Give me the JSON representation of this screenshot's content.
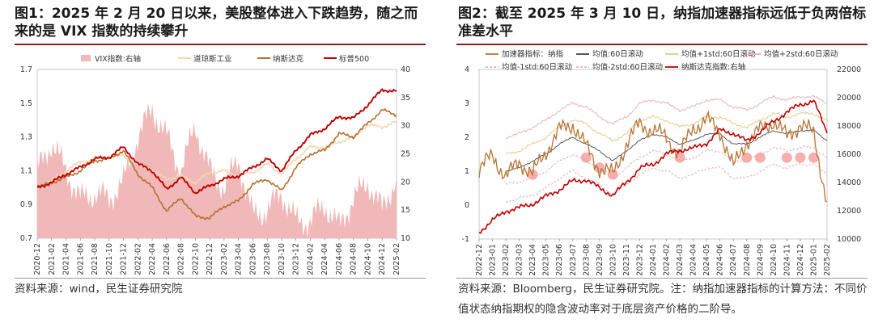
{
  "titles": {
    "left": "图1：2025 年 2 月 20 日以来，美股整体进入下跌趋势，随之而来的是 VIX 指数的持续攀升",
    "right": "图2：截至 2025 年 3 月 10 日，纳指加速器指标远低于负两倍标准差水平"
  },
  "sources": {
    "left": "资料来源：wind，民生证券研究院",
    "right": "资料来源：Bloomberg，民生证券研究院。注：纳指加速器指标的计算方法：不同价值状态纳指期权的隐含波动率对于底层资产价格的二阶导。"
  },
  "colors": {
    "vix": "#f0b8b8",
    "dow": "#f3d7b0",
    "nasdaq": "#b5702e",
    "sp500": "#c00000",
    "accel": "#b87333",
    "mean": "#444444",
    "plus1": "#e8c98a",
    "plus2": "#e8b0b8",
    "minus": "#e8b0b8",
    "highlight": "#f4a0a0"
  },
  "chart_data": [
    {
      "type": "line",
      "title": "图1：2025 年 2 月 20 日以来，美股整体进入下跌趋势，随之而来的是 VIX 指数的持续攀升",
      "legend": [
        "VIX指数:右轴",
        "道琼斯工业",
        "纳斯达克",
        "标普500"
      ],
      "x_ticks": [
        "2020-12",
        "2021-02",
        "2021-04",
        "2021-06",
        "2021-08",
        "2021-10",
        "2021-12",
        "2022-02",
        "2022-04",
        "2022-06",
        "2022-08",
        "2022-10",
        "2022-12",
        "2023-02",
        "2023-04",
        "2023-06",
        "2023-08",
        "2023-10",
        "2023-12",
        "2024-02",
        "2024-04",
        "2024-06",
        "2024-08",
        "2024-10",
        "2024-12",
        "2025-02"
      ],
      "y_left_ticks": [
        "0.7",
        "0.9",
        "1.1",
        "1.3",
        "1.5",
        "1.7"
      ],
      "y_left_range": [
        0.7,
        1.7
      ],
      "y_right_ticks": [
        "10",
        "15",
        "20",
        "25",
        "30",
        "35",
        "40"
      ],
      "y_right_range": [
        10,
        40
      ],
      "series": [
        {
          "name": "道琼斯工业",
          "axis": "left",
          "values": [
            1.0,
            1.04,
            1.1,
            1.15,
            1.17,
            1.18,
            1.19,
            1.13,
            1.1,
            1.05,
            1.07,
            1.03,
            1.09,
            1.1,
            1.07,
            1.09,
            1.14,
            1.08,
            1.17,
            1.24,
            1.24,
            1.27,
            1.3,
            1.37,
            1.36,
            1.39
          ]
        },
        {
          "name": "纳斯达克",
          "axis": "left",
          "values": [
            1.0,
            1.03,
            1.06,
            1.1,
            1.16,
            1.17,
            1.22,
            1.08,
            1.0,
            0.86,
            0.94,
            0.83,
            0.82,
            0.89,
            0.92,
            1.02,
            1.05,
            0.98,
            1.12,
            1.2,
            1.22,
            1.32,
            1.3,
            1.38,
            1.46,
            1.43
          ]
        },
        {
          "name": "标普500",
          "axis": "left",
          "values": [
            1.0,
            1.03,
            1.08,
            1.12,
            1.17,
            1.18,
            1.24,
            1.14,
            1.1,
            0.99,
            1.06,
            0.97,
            1.01,
            1.05,
            1.07,
            1.12,
            1.17,
            1.1,
            1.22,
            1.31,
            1.35,
            1.42,
            1.41,
            1.49,
            1.58,
            1.57
          ]
        },
        {
          "name": "VIX指数:右轴",
          "axis": "right",
          "values": [
            22,
            27,
            22,
            17,
            18,
            17,
            20,
            28,
            33,
            28,
            22,
            30,
            22,
            19,
            24,
            14,
            15,
            18,
            13,
            13,
            16,
            12,
            17,
            20,
            15,
            21
          ]
        }
      ]
    },
    {
      "type": "line",
      "title": "图2：截至 2025 年 3 月 10 日，纳指加速器指标远低于负两倍标准差水平",
      "legend": [
        "加速器指标：纳指",
        "均值:60日滚动",
        "均值+1std:60日滚动",
        "均值+2std:60日滚动",
        "均值-1std:60日滚动",
        "均值-2std:60日滚动",
        "纳斯达克指数:右轴"
      ],
      "x_ticks": [
        "2022-12",
        "2023-01",
        "2023-02",
        "2023-03",
        "2023-04",
        "2023-05",
        "2023-06",
        "2023-07",
        "2023-08",
        "2023-09",
        "2023-10",
        "2023-11",
        "2023-12",
        "2024-01",
        "2024-02",
        "2024-03",
        "2024-04",
        "2024-05",
        "2024-06",
        "2024-07",
        "2024-08",
        "2024-09",
        "2024-10",
        "2024-11",
        "2024-12",
        "2025-01",
        "2025-02"
      ],
      "y_left_ticks": [
        "-1",
        "0",
        "1",
        "2",
        "3",
        "4"
      ],
      "y_left_range": [
        -1,
        4
      ],
      "y_right_ticks": [
        "10000",
        "12000",
        "14000",
        "16000",
        "18000",
        "20000",
        "22000"
      ],
      "y_right_range": [
        10000,
        22000
      ],
      "series": [
        {
          "name": "加速器指标：纳指",
          "axis": "left",
          "values": [
            1.0,
            1.5,
            0.8,
            1.3,
            0.9,
            1.6,
            2.2,
            2.4,
            1.7,
            1.1,
            0.9,
            1.8,
            2.4,
            2.2,
            2.0,
            1.5,
            2.3,
            2.5,
            2.2,
            1.1,
            1.9,
            2.2,
            2.5,
            2.0,
            2.4,
            2.1,
            0.1
          ]
        },
        {
          "name": "均值:60日滚动",
          "axis": "left",
          "values": [
            null,
            null,
            1.0,
            1.1,
            1.3,
            1.5,
            1.8,
            2.0,
            1.8,
            1.6,
            1.3,
            1.6,
            1.9,
            2.1,
            2.0,
            1.8,
            1.9,
            2.1,
            2.1,
            1.8,
            1.8,
            2.0,
            2.2,
            2.1,
            2.2,
            2.2,
            1.9
          ]
        },
        {
          "name": "均值+1std:60日滚动",
          "axis": "left",
          "values": [
            null,
            null,
            1.5,
            1.6,
            1.8,
            2.0,
            2.3,
            2.5,
            2.4,
            2.1,
            1.9,
            2.1,
            2.5,
            2.6,
            2.5,
            2.3,
            2.4,
            2.6,
            2.6,
            2.4,
            2.3,
            2.5,
            2.7,
            2.6,
            2.7,
            2.7,
            2.5
          ]
        },
        {
          "name": "均值+2std:60日滚动",
          "axis": "left",
          "values": [
            null,
            null,
            2.0,
            2.1,
            2.3,
            2.5,
            2.8,
            3.0,
            2.9,
            2.6,
            2.4,
            2.6,
            3.0,
            3.1,
            3.0,
            2.8,
            2.9,
            3.1,
            3.1,
            2.9,
            2.8,
            3.0,
            3.2,
            3.1,
            3.2,
            3.2,
            3.0
          ]
        },
        {
          "name": "均值-1std:60日滚动",
          "axis": "left",
          "values": [
            null,
            null,
            0.6,
            0.7,
            0.8,
            1.0,
            1.3,
            1.5,
            1.3,
            1.1,
            0.8,
            1.1,
            1.4,
            1.6,
            1.5,
            1.3,
            1.4,
            1.6,
            1.6,
            1.3,
            1.3,
            1.5,
            1.7,
            1.6,
            1.7,
            1.7,
            1.4
          ]
        },
        {
          "name": "均值-2std:60日滚动",
          "axis": "left",
          "values": [
            null,
            null,
            0.1,
            0.2,
            0.3,
            0.5,
            0.8,
            1.0,
            0.8,
            0.6,
            0.3,
            0.6,
            0.9,
            1.1,
            1.0,
            0.8,
            0.9,
            1.1,
            1.1,
            0.8,
            0.8,
            1.0,
            1.2,
            1.1,
            1.2,
            1.2,
            0.9
          ]
        },
        {
          "name": "纳斯达克指数:右轴",
          "axis": "right",
          "values": [
            10500,
            11300,
            12000,
            12200,
            12500,
            13000,
            13500,
            14100,
            14200,
            13600,
            13100,
            14000,
            15000,
            15300,
            16000,
            16300,
            16400,
            16800,
            17700,
            17500,
            16900,
            17600,
            18300,
            19000,
            19500,
            19800,
            17500
          ]
        }
      ],
      "highlights": [
        "2023-04",
        "2023-08",
        "2023-09",
        "2023-10",
        "2024-03",
        "2024-08",
        "2024-09",
        "2024-11",
        "2024-12",
        "2025-01"
      ]
    }
  ]
}
